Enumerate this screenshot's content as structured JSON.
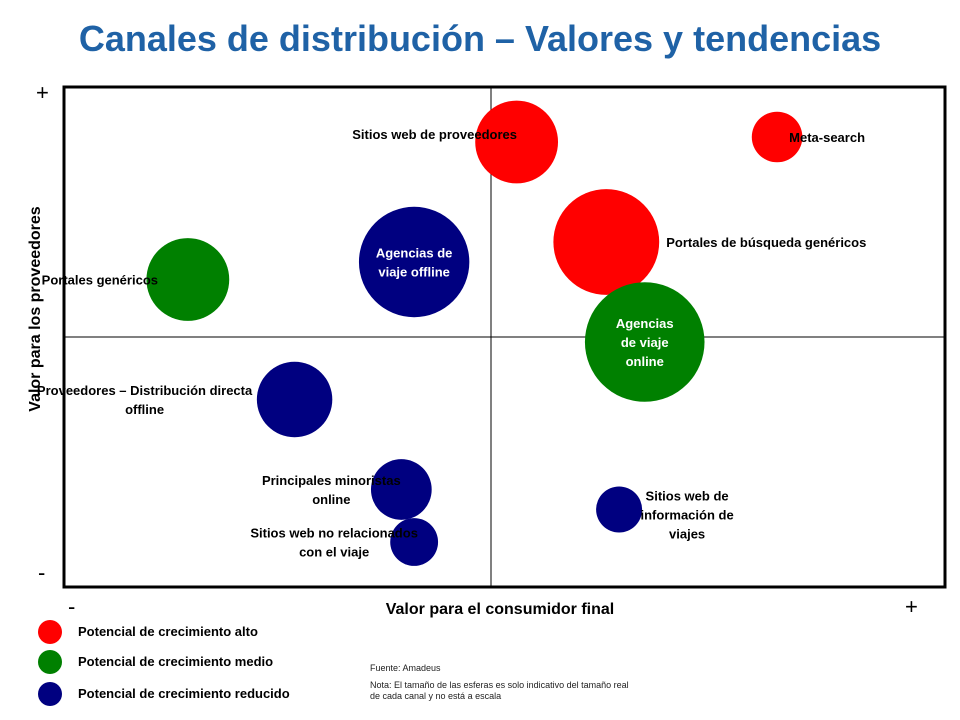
{
  "chart_data": {
    "type": "scatter",
    "title": "Canales de distribución – Valores y tendencias",
    "xlabel": "Valor para el consumidor final",
    "ylabel": "Valor para los proveedores",
    "x_axis_ends": [
      "-",
      "+"
    ],
    "y_axis_ends": [
      "+",
      "-"
    ],
    "grid": false,
    "quadrant_divider": true,
    "legend_placement": "bottom-left",
    "growth_categories": [
      {
        "name": "Potencial de crecimiento alto",
        "color": "#ff0000"
      },
      {
        "name": "Potencial de crecimiento medio",
        "color": "#008000"
      },
      {
        "name": "Potencial de crecimiento reducido",
        "color": "#000080"
      }
    ],
    "points": [
      {
        "label": [
          "Sitios web de proveedores"
        ],
        "x": 0.06,
        "y": 0.78,
        "size": 0.9,
        "growth": 0,
        "label_style": "outside"
      },
      {
        "label": [
          "Meta-search"
        ],
        "x": 0.67,
        "y": 0.8,
        "size": 0.55,
        "growth": 0,
        "label_style": "outside"
      },
      {
        "label": [
          "Portales de búsqueda genéricos"
        ],
        "x": 0.27,
        "y": 0.38,
        "size": 1.15,
        "growth": 0,
        "label_style": "outside"
      },
      {
        "label": [
          "Agencias de",
          "viaje offline"
        ],
        "x": -0.18,
        "y": 0.3,
        "size": 1.2,
        "growth": 2,
        "label_style": "inside"
      },
      {
        "label": [
          "Portales genéricos"
        ],
        "x": -0.71,
        "y": 0.23,
        "size": 0.9,
        "growth": 1,
        "label_style": "outside"
      },
      {
        "label": [
          "Agencias",
          "de viaje",
          "online"
        ],
        "x": 0.36,
        "y": -0.02,
        "size": 1.3,
        "growth": 1,
        "label_style": "inside"
      },
      {
        "label": [
          "Proveedores – Distribución directa",
          "offline"
        ],
        "x": -0.46,
        "y": -0.25,
        "size": 0.82,
        "growth": 2,
        "label_style": "outside"
      },
      {
        "label": [
          "Principales minoristas",
          "online"
        ],
        "x": -0.21,
        "y": -0.61,
        "size": 0.66,
        "growth": 2,
        "label_style": "outside"
      },
      {
        "label": [
          "Sitios web no relacionados",
          "con el viaje"
        ],
        "x": -0.18,
        "y": -0.82,
        "size": 0.52,
        "growth": 2,
        "label_style": "outside"
      },
      {
        "label": [
          "Sitios web de",
          "información de",
          "viajes"
        ],
        "x": 0.3,
        "y": -0.69,
        "size": 0.5,
        "growth": 2,
        "label_style": "outside"
      }
    ],
    "source": "Fuente: Amadeus",
    "note": "Nota: El tamaño de las esferas es solo indicativo del tamaño real de cada canal y no está a escala"
  }
}
